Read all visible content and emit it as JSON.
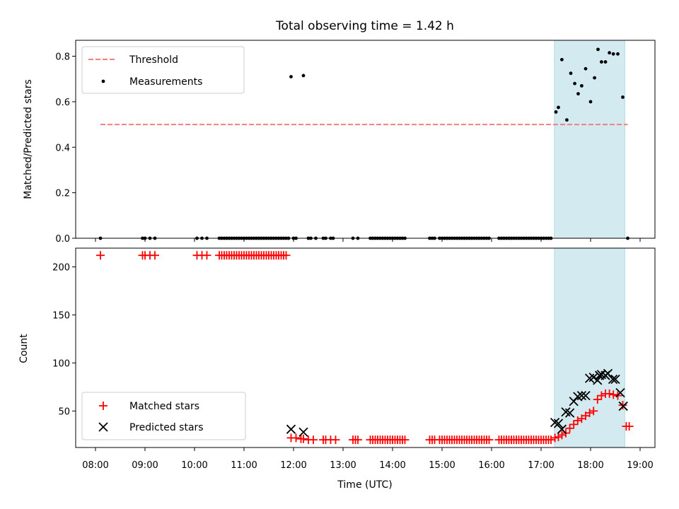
{
  "chart_data": {
    "title": "Total observing time = 1.42 h",
    "xlabel": "Time (UTC)",
    "xticks": [
      "08:00",
      "09:00",
      "10:00",
      "11:00",
      "12:00",
      "13:00",
      "14:00",
      "15:00",
      "16:00",
      "17:00",
      "18:00",
      "19:00"
    ],
    "xlim": [
      7.6,
      19.3
    ],
    "shaded_window": [
      17.27,
      18.69
    ],
    "shade_color": "#d3eaf0",
    "panels": [
      {
        "type": "scatter",
        "ylabel": "Matched/Predicted stars",
        "ylim": [
          0,
          0.87
        ],
        "yticks": [
          0.0,
          0.2,
          0.4,
          0.6,
          0.8
        ],
        "yticklabels": [
          "0.0",
          "0.2",
          "0.4",
          "0.6",
          "0.8"
        ],
        "legend_position": "upper-left",
        "series": [
          {
            "name": "Threshold",
            "kind": "dashed-line",
            "color": "#f08080",
            "x": [
              8.1,
              18.75
            ],
            "y": [
              0.5,
              0.5
            ]
          },
          {
            "name": "Measurements",
            "kind": "dot",
            "color": "#000000",
            "x": [
              8.1,
              8.95,
              9.0,
              9.1,
              9.2,
              10.05,
              10.15,
              10.25,
              10.5,
              10.55,
              10.6,
              10.65,
              10.7,
              10.75,
              10.8,
              10.85,
              10.9,
              10.95,
              11.0,
              11.05,
              11.1,
              11.15,
              11.2,
              11.25,
              11.3,
              11.35,
              11.4,
              11.45,
              11.5,
              11.55,
              11.6,
              11.65,
              11.7,
              11.75,
              11.8,
              11.85,
              11.9,
              11.95,
              12.0,
              12.05,
              12.2,
              12.3,
              12.35,
              12.45,
              12.6,
              12.65,
              12.75,
              12.8,
              13.2,
              13.3,
              13.55,
              13.6,
              13.65,
              13.7,
              13.75,
              13.8,
              13.85,
              13.9,
              13.95,
              14.0,
              14.05,
              14.1,
              14.15,
              14.2,
              14.25,
              14.75,
              14.8,
              14.85,
              14.95,
              15.0,
              15.05,
              15.1,
              15.15,
              15.2,
              15.25,
              15.3,
              15.35,
              15.4,
              15.45,
              15.5,
              15.55,
              15.6,
              15.65,
              15.7,
              15.75,
              15.8,
              15.85,
              15.9,
              15.95,
              16.15,
              16.2,
              16.25,
              16.3,
              16.35,
              16.4,
              16.45,
              16.5,
              16.55,
              16.6,
              16.65,
              16.7,
              16.75,
              16.8,
              16.85,
              16.9,
              16.95,
              17.0,
              17.05,
              17.1,
              17.15,
              17.2,
              17.3,
              17.35,
              17.42,
              17.52,
              17.6,
              17.68,
              17.75,
              17.82,
              17.9,
              18.0,
              18.08,
              18.15,
              18.22,
              18.3,
              18.38,
              18.46,
              18.55,
              18.65,
              18.75
            ],
            "y": [
              0,
              0,
              0,
              0,
              0,
              0,
              0,
              0,
              0,
              0,
              0,
              0,
              0,
              0,
              0,
              0,
              0,
              0,
              0,
              0,
              0,
              0,
              0,
              0,
              0,
              0,
              0,
              0,
              0,
              0,
              0,
              0,
              0,
              0,
              0,
              0,
              0,
              0.71,
              0,
              0,
              0.715,
              0,
              0,
              0,
              0,
              0,
              0,
              0,
              0,
              0,
              0,
              0,
              0,
              0,
              0,
              0,
              0,
              0,
              0,
              0,
              0,
              0,
              0,
              0,
              0,
              0,
              0,
              0,
              0,
              0,
              0,
              0,
              0,
              0,
              0,
              0,
              0,
              0,
              0,
              0,
              0,
              0,
              0,
              0,
              0,
              0,
              0,
              0,
              0,
              0,
              0,
              0,
              0,
              0,
              0,
              0,
              0,
              0,
              0,
              0,
              0,
              0,
              0,
              0,
              0,
              0,
              0,
              0,
              0,
              0,
              0,
              0.555,
              0.575,
              0.785,
              0.52,
              0.725,
              0.68,
              0.635,
              0.67,
              0.745,
              0.6,
              0.705,
              0.83,
              0.775,
              0.775,
              0.815,
              0.81,
              0.81,
              0.62,
              0
            ]
          }
        ]
      },
      {
        "type": "scatter",
        "ylabel": "Count",
        "ylim": [
          12,
          219.5
        ],
        "yticks": [
          50,
          100,
          150,
          200
        ],
        "yticklabels": [
          "50",
          "100",
          "150",
          "200"
        ],
        "legend_position": "lower-left",
        "series": [
          {
            "name": "Matched stars",
            "kind": "plus",
            "color": "#ff0000",
            "x": [
              8.1,
              8.95,
              9.0,
              9.1,
              9.2,
              10.05,
              10.15,
              10.25,
              10.5,
              10.55,
              10.6,
              10.65,
              10.7,
              10.75,
              10.8,
              10.85,
              10.9,
              10.95,
              11.0,
              11.05,
              11.1,
              11.15,
              11.2,
              11.25,
              11.3,
              11.35,
              11.4,
              11.45,
              11.5,
              11.55,
              11.6,
              11.65,
              11.7,
              11.75,
              11.8,
              11.85,
              11.95,
              12.05,
              12.15,
              12.2,
              12.3,
              12.4,
              12.6,
              12.65,
              12.75,
              12.85,
              13.2,
              13.25,
              13.3,
              13.55,
              13.6,
              13.65,
              13.7,
              13.75,
              13.8,
              13.85,
              13.9,
              13.95,
              14.0,
              14.05,
              14.1,
              14.15,
              14.2,
              14.25,
              14.75,
              14.8,
              14.85,
              14.95,
              15.0,
              15.05,
              15.1,
              15.15,
              15.2,
              15.25,
              15.3,
              15.35,
              15.4,
              15.45,
              15.5,
              15.55,
              15.6,
              15.65,
              15.7,
              15.75,
              15.8,
              15.85,
              15.9,
              15.95,
              16.15,
              16.2,
              16.25,
              16.3,
              16.35,
              16.4,
              16.45,
              16.5,
              16.55,
              16.6,
              16.65,
              16.7,
              16.75,
              16.8,
              16.85,
              16.9,
              16.95,
              17.0,
              17.05,
              17.1,
              17.15,
              17.2,
              17.28,
              17.35,
              17.42,
              17.5,
              17.58,
              17.66,
              17.74,
              17.82,
              17.9,
              17.98,
              18.06,
              18.14,
              18.22,
              18.3,
              18.38,
              18.46,
              18.55,
              18.65,
              18.72,
              18.78
            ],
            "y": [
              212,
              212,
              212,
              212,
              212,
              212,
              212,
              212,
              212,
              212,
              212,
              212,
              212,
              212,
              212,
              212,
              212,
              212,
              212,
              212,
              212,
              212,
              212,
              212,
              212,
              212,
              212,
              212,
              212,
              212,
              212,
              212,
              212,
              212,
              212,
              212,
              22,
              22,
              21,
              21,
              20,
              20,
              20,
              20,
              20,
              20,
              20,
              20,
              20,
              20,
              20,
              20,
              20,
              20,
              20,
              20,
              20,
              20,
              20,
              20,
              20,
              20,
              20,
              20,
              20,
              20,
              20,
              20,
              20,
              20,
              20,
              20,
              20,
              20,
              20,
              20,
              20,
              20,
              20,
              20,
              20,
              20,
              20,
              20,
              20,
              20,
              20,
              20,
              20,
              20,
              20,
              20,
              20,
              20,
              20,
              20,
              20,
              20,
              20,
              20,
              20,
              20,
              20,
              20,
              20,
              20,
              20,
              20,
              20,
              20,
              22,
              23,
              25,
              27,
              32,
              36,
              40,
              42,
              45,
              48,
              50,
              62,
              66,
              68,
              68,
              67,
              66,
              56,
              34,
              34
            ]
          },
          {
            "name": "Predicted stars",
            "kind": "x",
            "color": "#000000",
            "x": [
              11.95,
              12.2,
              17.28,
              17.35,
              17.42,
              17.5,
              17.58,
              17.66,
              17.74,
              17.82,
              17.9,
              17.98,
              18.06,
              18.14,
              18.18,
              18.22,
              18.3,
              18.35,
              18.45,
              18.5,
              18.6,
              18.66
            ],
            "y": [
              31,
              28,
              38,
              37,
              31,
              49,
              48,
              60,
              65,
              66,
              66,
              84,
              85,
              82,
              87,
              88,
              87,
              89,
              83,
              83,
              69,
              55
            ]
          }
        ]
      }
    ]
  }
}
